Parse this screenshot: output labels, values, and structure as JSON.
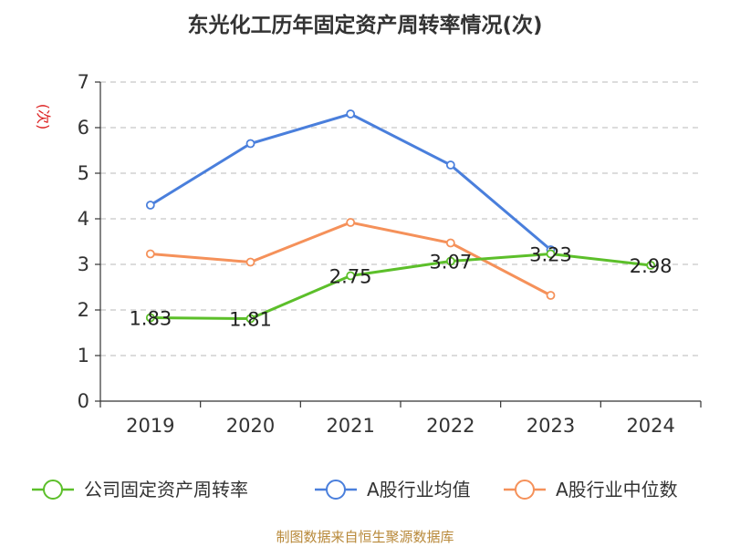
{
  "chart_data": {
    "type": "line",
    "title": "东光化工历年固定资产周转率情况(次)",
    "ylabel": "(次)",
    "categories": [
      "2019",
      "2020",
      "2021",
      "2022",
      "2023",
      "2024"
    ],
    "ylim": [
      0,
      7
    ],
    "yticks": [
      0,
      1,
      2,
      3,
      4,
      5,
      6,
      7
    ],
    "grid": true,
    "legend_position": "bottom",
    "series": [
      {
        "name": "公司固定资产周转率",
        "color": "#5cbf2a",
        "values": [
          1.83,
          1.81,
          2.75,
          3.07,
          3.23,
          2.98
        ],
        "labels": true
      },
      {
        "name": "A股行业均值",
        "color": "#4a7fdc",
        "values": [
          4.3,
          5.65,
          6.3,
          5.18,
          3.32,
          null
        ],
        "labels": false
      },
      {
        "name": "A股行业中位数",
        "color": "#f5915a",
        "values": [
          3.23,
          3.05,
          3.92,
          3.47,
          2.32,
          null
        ],
        "labels": false
      }
    ]
  },
  "source": "制图数据来自恒生聚源数据库"
}
